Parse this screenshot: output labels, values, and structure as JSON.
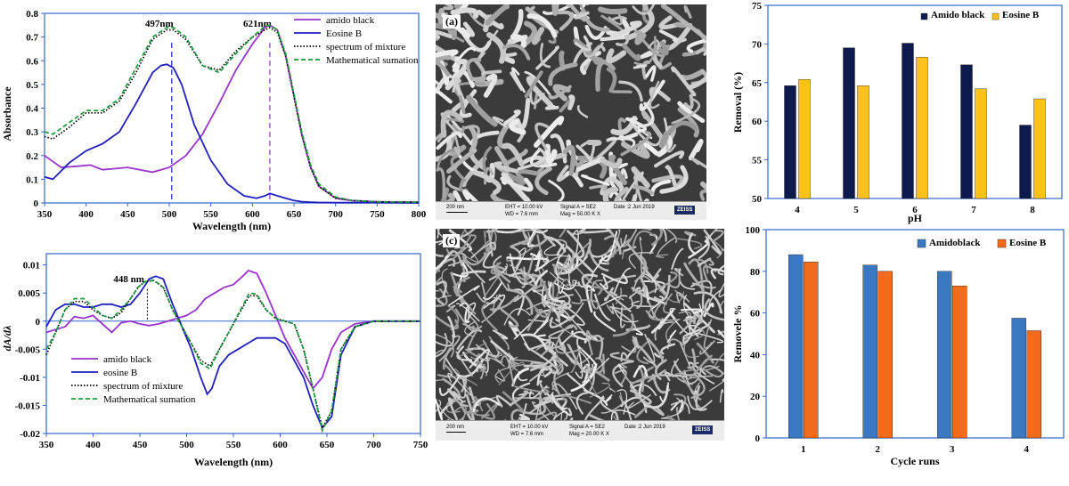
{
  "colors": {
    "amido": "#9933cc",
    "eosine": "#1f1fbf",
    "mixture": "#000000",
    "sum": "#1a9a3a",
    "bar_navy": "#0d1a4d",
    "bar_yellow": "#ffc21a",
    "bar_blue": "#3a78c2",
    "bar_orange": "#f26a1b"
  },
  "chart_data": [
    {
      "id": "absorbance",
      "type": "line",
      "xlabel": "Wavelength  (nm)",
      "ylabel": "Absorbance",
      "xlim": [
        350,
        800
      ],
      "ylim": [
        0,
        0.8
      ],
      "xticks": [
        "350",
        "400",
        "450",
        "500",
        "550",
        "600",
        "650",
        "700",
        "750",
        "800"
      ],
      "yticks": [
        "0",
        "0.1",
        "0.2",
        "0.3",
        "0.4",
        "0.5",
        "0.6",
        "0.7",
        "0.8"
      ],
      "annotations": [
        {
          "text": "497nm",
          "x": 503,
          "color": "eosine"
        },
        {
          "text": "621nm",
          "x": 621,
          "color": "amido"
        }
      ],
      "legend": [
        "amido black",
        "Eosine B",
        "spectrum of mixture",
        "Mathematical sumation"
      ],
      "series": [
        {
          "name": "amido black",
          "style": "solid",
          "color": "amido",
          "x": [
            350,
            370,
            390,
            405,
            420,
            450,
            480,
            500,
            520,
            540,
            560,
            580,
            600,
            615,
            621,
            630,
            640,
            650,
            660,
            670,
            680,
            700,
            720,
            750,
            800
          ],
          "y": [
            0.2,
            0.15,
            0.155,
            0.16,
            0.14,
            0.15,
            0.13,
            0.15,
            0.2,
            0.29,
            0.42,
            0.56,
            0.67,
            0.74,
            0.75,
            0.73,
            0.62,
            0.45,
            0.28,
            0.15,
            0.07,
            0.02,
            0.01,
            0.005,
            0.003
          ]
        },
        {
          "name": "Eosine B",
          "style": "solid",
          "color": "eosine",
          "x": [
            350,
            360,
            380,
            400,
            420,
            440,
            460,
            480,
            490,
            497,
            505,
            515,
            530,
            550,
            570,
            590,
            605,
            615,
            621,
            630,
            640,
            650,
            660,
            670,
            680,
            700,
            720,
            750,
            800
          ],
          "y": [
            0.11,
            0.1,
            0.17,
            0.22,
            0.25,
            0.3,
            0.42,
            0.55,
            0.58,
            0.585,
            0.57,
            0.5,
            0.33,
            0.18,
            0.08,
            0.03,
            0.02,
            0.03,
            0.04,
            0.03,
            0.02,
            0.01,
            0.005,
            0.003,
            0.002,
            0.001,
            0.001,
            0.001,
            0.0
          ]
        },
        {
          "name": "spectrum of mixture",
          "style": "dotted",
          "color": "mixture",
          "x": [
            350,
            360,
            380,
            400,
            420,
            440,
            460,
            480,
            497,
            505,
            520,
            540,
            560,
            580,
            600,
            615,
            621,
            630,
            640,
            650,
            660,
            670,
            680,
            700,
            720,
            750,
            800
          ],
          "y": [
            0.28,
            0.27,
            0.32,
            0.38,
            0.38,
            0.43,
            0.55,
            0.69,
            0.73,
            0.73,
            0.69,
            0.58,
            0.56,
            0.64,
            0.7,
            0.73,
            0.74,
            0.72,
            0.62,
            0.45,
            0.28,
            0.15,
            0.07,
            0.02,
            0.01,
            0.005,
            0.003
          ]
        },
        {
          "name": "Mathematical sumation",
          "style": "dashed",
          "color": "sum",
          "x": [
            350,
            360,
            380,
            400,
            420,
            440,
            460,
            480,
            497,
            505,
            520,
            540,
            560,
            580,
            600,
            615,
            621,
            630,
            640,
            650,
            660,
            670,
            680,
            700,
            720,
            750,
            800
          ],
          "y": [
            0.3,
            0.29,
            0.34,
            0.39,
            0.39,
            0.44,
            0.57,
            0.7,
            0.74,
            0.74,
            0.7,
            0.58,
            0.55,
            0.63,
            0.7,
            0.745,
            0.75,
            0.73,
            0.63,
            0.46,
            0.29,
            0.16,
            0.08,
            0.025,
            0.01,
            0.005,
            0.003
          ]
        }
      ]
    },
    {
      "id": "derivative",
      "type": "line",
      "xlabel": "Wavelength (nm)",
      "ylabel": "dA/dλ",
      "xlim": [
        350,
        750
      ],
      "ylim": [
        -0.02,
        0.012
      ],
      "xticks": [
        "350",
        "400",
        "450",
        "500",
        "550",
        "600",
        "650",
        "700",
        "750"
      ],
      "yticks": [
        "0.01",
        "0.005",
        "0",
        "-0.005",
        "-0.01",
        "-0.015",
        "-0.02"
      ],
      "ytick_values": [
        0.01,
        0.005,
        0,
        -0.005,
        -0.01,
        -0.015,
        -0.02
      ],
      "annotations": [
        {
          "text": "448 nm",
          "x": 448
        }
      ],
      "legend": [
        "amido black",
        "eosine B",
        "spectrum of mixture",
        "Mathematical sumation"
      ],
      "series": [
        {
          "name": "amido black",
          "style": "solid",
          "color": "amido",
          "x": [
            350,
            360,
            370,
            380,
            390,
            400,
            410,
            420,
            430,
            440,
            450,
            460,
            470,
            480,
            490,
            500,
            510,
            520,
            530,
            540,
            550,
            560,
            566,
            575,
            585,
            595,
            605,
            615,
            625,
            635,
            645,
            655,
            665,
            680,
            700,
            720,
            750
          ],
          "y": [
            -0.002,
            -0.0015,
            -0.001,
            0.0008,
            0.0005,
            0.001,
            -0.0005,
            -0.002,
            -0.0003,
            0,
            -0.0005,
            -0.0008,
            -0.0005,
            0,
            0.0005,
            0.001,
            0.002,
            0.004,
            0.005,
            0.006,
            0.0065,
            0.008,
            0.009,
            0.0085,
            0.005,
            0.001,
            -0.003,
            -0.006,
            -0.009,
            -0.012,
            -0.01,
            -0.005,
            -0.002,
            -0.0005,
            0,
            0,
            0
          ]
        },
        {
          "name": "eosine B",
          "style": "solid",
          "color": "eosine",
          "x": [
            350,
            360,
            370,
            380,
            390,
            400,
            410,
            420,
            430,
            440,
            450,
            460,
            467,
            475,
            485,
            495,
            505,
            515,
            522,
            527,
            535,
            545,
            555,
            565,
            575,
            585,
            595,
            605,
            615,
            625,
            635,
            645,
            655,
            665,
            680,
            700,
            720,
            750
          ],
          "y": [
            -0.001,
            0.002,
            0.003,
            0.003,
            0.0025,
            0.0025,
            0.003,
            0.003,
            0.0025,
            0.003,
            0.005,
            0.0075,
            0.008,
            0.0075,
            0.003,
            -0.001,
            -0.005,
            -0.01,
            -0.013,
            -0.012,
            -0.008,
            -0.006,
            -0.005,
            -0.004,
            -0.003,
            -0.003,
            -0.003,
            -0.004,
            -0.007,
            -0.01,
            -0.015,
            -0.019,
            -0.017,
            -0.006,
            -0.001,
            0,
            0,
            0
          ]
        },
        {
          "name": "spectrum of mixture",
          "style": "dotted",
          "color": "mixture",
          "x": [
            350,
            360,
            370,
            380,
            390,
            400,
            410,
            420,
            430,
            440,
            448,
            455,
            465,
            475,
            485,
            495,
            505,
            515,
            525,
            535,
            545,
            555,
            567,
            575,
            585,
            595,
            605,
            615,
            625,
            635,
            645,
            655,
            665,
            680,
            700,
            720,
            750
          ],
          "y": [
            -0.006,
            -0.002,
            0.002,
            0.0035,
            0.0035,
            0.002,
            0.001,
            0.0005,
            0.0015,
            0.004,
            0.006,
            0.007,
            0.0072,
            0.006,
            0.002,
            -0.001,
            -0.004,
            -0.007,
            -0.008,
            -0.005,
            -0.002,
            0.001,
            0.0045,
            0.0045,
            0.002,
            0.0005,
            0,
            -0.0005,
            -0.005,
            -0.012,
            -0.019,
            -0.016,
            -0.005,
            -0.001,
            0,
            0,
            0
          ]
        },
        {
          "name": "Mathematical sumation",
          "style": "dashed",
          "color": "sum",
          "x": [
            350,
            360,
            370,
            380,
            390,
            400,
            410,
            420,
            430,
            440,
            448,
            455,
            465,
            475,
            485,
            495,
            505,
            515,
            525,
            535,
            545,
            555,
            567,
            575,
            585,
            595,
            605,
            615,
            625,
            635,
            645,
            655,
            665,
            680,
            700,
            720,
            750
          ],
          "y": [
            -0.005,
            -0.002,
            0.002,
            0.004,
            0.004,
            0.0025,
            0.001,
            0.0005,
            0.002,
            0.004,
            0.006,
            0.007,
            0.0073,
            0.006,
            0.002,
            -0.001,
            -0.004,
            -0.0075,
            -0.0085,
            -0.005,
            -0.002,
            0.0012,
            0.005,
            0.0048,
            0.002,
            0.0005,
            0,
            -0.0005,
            -0.005,
            -0.012,
            -0.0195,
            -0.016,
            -0.005,
            -0.001,
            0,
            0,
            0
          ]
        }
      ]
    },
    {
      "id": "ph",
      "type": "bar",
      "xlabel": "pH",
      "ylabel": "Removal (%)",
      "categories": [
        "4",
        "5",
        "6",
        "7",
        "8"
      ],
      "ylim": [
        50,
        75
      ],
      "yticks": [
        "50",
        "55",
        "60",
        "65",
        "70",
        "75"
      ],
      "ytick_values": [
        50,
        55,
        60,
        65,
        70,
        75
      ],
      "series": [
        {
          "name": "Amido black",
          "color": "bar_navy",
          "values": [
            64.6,
            69.5,
            70.1,
            67.3,
            59.5
          ]
        },
        {
          "name": "Eosine B",
          "color": "bar_yellow",
          "values": [
            65.4,
            64.6,
            68.3,
            64.2,
            62.9
          ]
        }
      ]
    },
    {
      "id": "cycles",
      "type": "bar",
      "xlabel": "Cycle runs",
      "ylabel": "Removele %",
      "categories": [
        "1",
        "2",
        "3",
        "4"
      ],
      "ylim": [
        0,
        100
      ],
      "yticks": [
        "0",
        "20",
        "40",
        "60",
        "80",
        "100"
      ],
      "ytick_values": [
        0,
        20,
        40,
        60,
        80,
        100
      ],
      "series": [
        {
          "name": "Amidoblack",
          "color": "bar_blue",
          "values": [
            88,
            83,
            80,
            57.5
          ]
        },
        {
          "name": "Eosine B",
          "color": "bar_orange",
          "values": [
            84.5,
            80,
            73,
            51.5
          ]
        }
      ]
    }
  ],
  "sem": [
    {
      "label": "(a)",
      "scale": "200 nm",
      "eht": "EHT = 10.00 kV",
      "wd": "WD = 7.6 mm",
      "signal": "Signal A = SE2",
      "mag": "Mag = 50.00 K X",
      "date": "Date :2 Jun 2019",
      "brand": "ZEISS"
    },
    {
      "label": "(c)",
      "scale": "200 nm",
      "eht": "EHT = 10.00 kV",
      "wd": "WD = 7.6 mm",
      "signal": "Signal A = SE2",
      "mag": "Mag = 20.00 K X",
      "date": "Date :2 Jun 2019",
      "brand": "ZEISS"
    }
  ]
}
